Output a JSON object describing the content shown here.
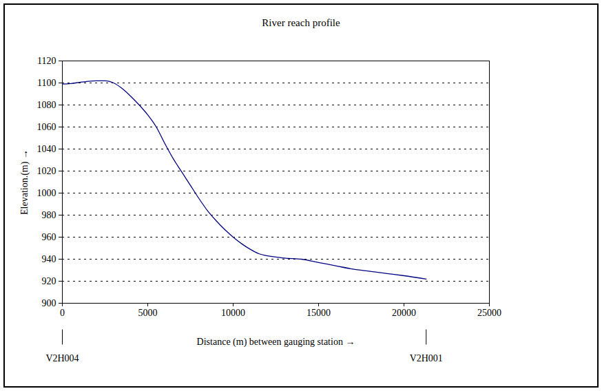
{
  "chart_data": {
    "type": "line",
    "title": "River reach profile",
    "x_label": "Distance (m) between gauging station",
    "y_label": "Elevation.(m)",
    "x": [
      0,
      500,
      1000,
      1500,
      2000,
      2500,
      3000,
      3500,
      4000,
      4500,
      5000,
      5500,
      6000,
      6500,
      7000,
      7500,
      8000,
      8500,
      9000,
      9500,
      10000,
      10500,
      11000,
      11500,
      12000,
      12500,
      13000,
      14000,
      15000,
      16000,
      17000,
      18000,
      19000,
      20000,
      21300
    ],
    "series": [
      {
        "name": "Elevation",
        "color": "#000080",
        "values": [
          1099,
          1099.5,
          1100.5,
          1101.5,
          1102,
          1102,
          1100,
          1095,
          1088,
          1080,
          1071,
          1060,
          1045,
          1031,
          1019,
          1007,
          995,
          984,
          975,
          967,
          960,
          954,
          949,
          945,
          943,
          942,
          941,
          940,
          937,
          934,
          931,
          929,
          927,
          925,
          922
        ]
      }
    ],
    "xlim": [
      0,
      25000
    ],
    "xticks": [
      0,
      5000,
      10000,
      15000,
      20000,
      25000
    ],
    "ylim": [
      900,
      1120
    ],
    "yticks": [
      900,
      920,
      940,
      960,
      980,
      1000,
      1020,
      1040,
      1060,
      1080,
      1100,
      1120
    ],
    "grid": true,
    "annotations": [
      {
        "text": "V2H004",
        "x": 0
      },
      {
        "text": "V2H001",
        "x": 21300
      }
    ]
  }
}
